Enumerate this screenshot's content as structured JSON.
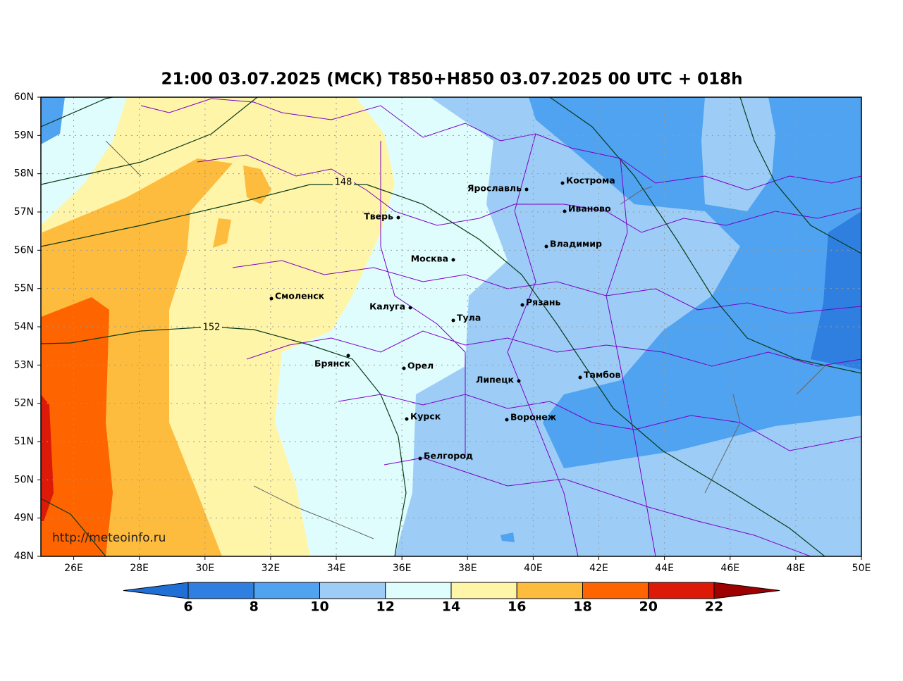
{
  "map": {
    "title": "21:00 03.07.2025 (МСК) T850+H850 03.07.2025 00 UTC + 018h",
    "lat_labels": [
      "60N",
      "59N",
      "58N",
      "57N",
      "56N",
      "55N",
      "54N",
      "53N",
      "52N",
      "51N",
      "50N",
      "49N",
      "48N"
    ],
    "lon_labels": [
      "26E",
      "28E",
      "30E",
      "32E",
      "34E",
      "36E",
      "38E",
      "40E",
      "42E",
      "44E",
      "46E",
      "48E",
      "50E"
    ],
    "cities": [
      {
        "label": "Ярославль"
      },
      {
        "label": "Кострома"
      },
      {
        "label": "Тверь"
      },
      {
        "label": "Иваново"
      },
      {
        "label": "Владимир"
      },
      {
        "label": "Москва"
      },
      {
        "label": "Смоленск"
      },
      {
        "label": "Калуга"
      },
      {
        "label": "Рязань"
      },
      {
        "label": "Тула"
      },
      {
        "label": "Брянск"
      },
      {
        "label": "Орел"
      },
      {
        "label": "Липецк"
      },
      {
        "label": "Тамбов"
      },
      {
        "label": "Курск"
      },
      {
        "label": "Воронеж"
      },
      {
        "label": "Белгород"
      }
    ],
    "contour_labels": [
      148,
      152
    ],
    "watermark": "http://meteoinfo.ru",
    "colorbar": {
      "ticks": [
        6,
        8,
        10,
        12,
        14,
        16,
        18,
        20,
        22
      ],
      "colors": [
        "#2e7fe0",
        "#4fa3f0",
        "#9dcdf6",
        "#e0fdfd",
        "#fff5a8",
        "#fdbc3e",
        "#fe6400",
        "#dd1a08"
      ],
      "under_color": "#1f6fd6",
      "over_color": "#9e0000"
    }
  }
}
